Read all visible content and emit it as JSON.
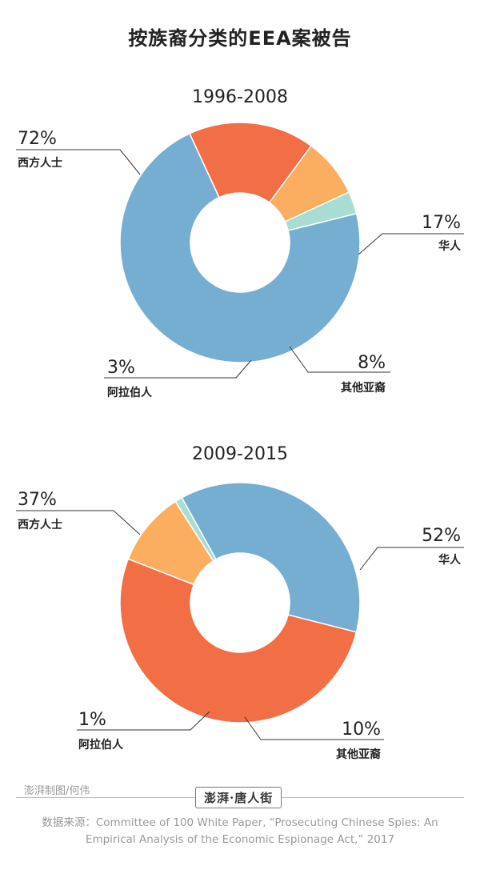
{
  "title": "按族裔分类的EEA案被告",
  "chart_data": [
    {
      "type": "pie",
      "title": "1996-2008",
      "categories": [
        "西方人士",
        "华人",
        "其他亚裔",
        "阿拉伯人"
      ],
      "values": [
        72,
        17,
        8,
        3
      ],
      "labels": [
        "72%",
        "17%",
        "8%",
        "3%"
      ],
      "colors": [
        "#76aed2",
        "#f26e45",
        "#fbad60",
        "#a9dcd3"
      ]
    },
    {
      "type": "pie",
      "title": "2009-2015",
      "categories": [
        "西方人士",
        "华人",
        "其他亚裔",
        "阿拉伯人"
      ],
      "values": [
        37,
        52,
        10,
        1
      ],
      "labels": [
        "37%",
        "52%",
        "10%",
        "1%"
      ],
      "colors": [
        "#76aed2",
        "#f26e45",
        "#fbad60",
        "#a9dcd3"
      ]
    }
  ],
  "footer": {
    "credit": "澎湃制图/何伟",
    "logo": "澎湃·唐人街",
    "source": "数据来源：Committee of 100 White Paper, “Prosecuting Chinese Spies: An Empirical Analysis of the Economic Espionage Act,” 2017"
  }
}
